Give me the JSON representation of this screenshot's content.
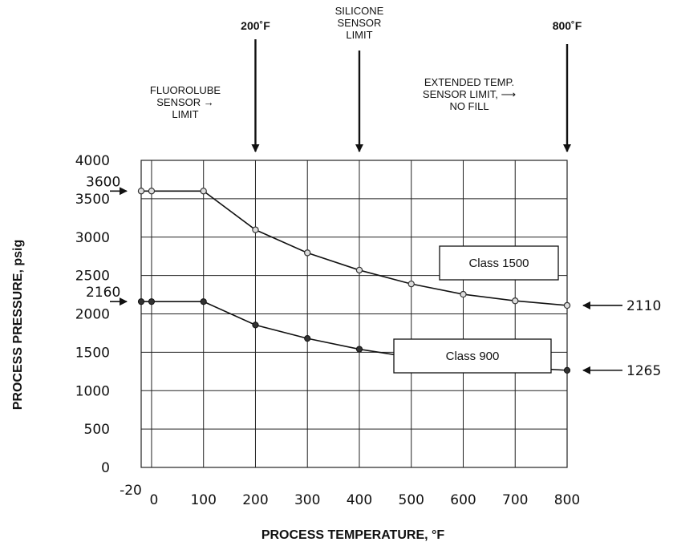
{
  "chart_data": {
    "type": "line",
    "xlabel": "PROCESS TEMPERATURE,  °F",
    "ylabel": "PROCESS PRESSURE, psig",
    "xlim": [
      -20,
      800
    ],
    "ylim": [
      0,
      4000
    ],
    "x_ticks": [
      "-20",
      "0",
      "100",
      "200",
      "300",
      "400",
      "500",
      "600",
      "700",
      "800"
    ],
    "y_ticks": [
      "0",
      "500",
      "1000",
      "1500",
      "2000",
      "2500",
      "3000",
      "3500",
      "4000"
    ],
    "grid": true,
    "series": [
      {
        "name": "Class 1500",
        "marker": "open",
        "x": [
          -20,
          0,
          100,
          200,
          300,
          400,
          500,
          600,
          700,
          800
        ],
        "y": [
          3600,
          3600,
          3600,
          3095,
          2795,
          2570,
          2390,
          2255,
          2170,
          2110
        ]
      },
      {
        "name": "Class 900",
        "marker": "filled",
        "x": [
          -20,
          0,
          100,
          200,
          300,
          400,
          500,
          600,
          700,
          800
        ],
        "y": [
          2160,
          2160,
          2160,
          1855,
          1680,
          1540,
          1435,
          1355,
          1305,
          1265
        ]
      }
    ],
    "value_annotations": [
      {
        "label": "3600",
        "value": 3600,
        "side": "left"
      },
      {
        "label": "2160",
        "value": 2160,
        "side": "left"
      },
      {
        "label": "2110",
        "value": 2110,
        "side": "right"
      },
      {
        "label": "1265",
        "value": 1265,
        "side": "right"
      }
    ],
    "limit_annotations": [
      {
        "lines": [
          "200˚F"
        ],
        "x": 200,
        "bold": true
      },
      {
        "lines": [
          "SILICONE",
          "SENSOR",
          "LIMIT"
        ],
        "x": 400,
        "bold": false
      },
      {
        "lines": [
          "800˚F"
        ],
        "x": 800,
        "bold": true
      }
    ],
    "side_notes": [
      {
        "lines": [
          "FLUOROLUBE",
          "SENSOR →",
          "LIMIT"
        ]
      },
      {
        "lines": [
          "EXTENDED TEMP.",
          "SENSOR LIMIT, ⟶",
          "NO FILL"
        ]
      }
    ]
  }
}
